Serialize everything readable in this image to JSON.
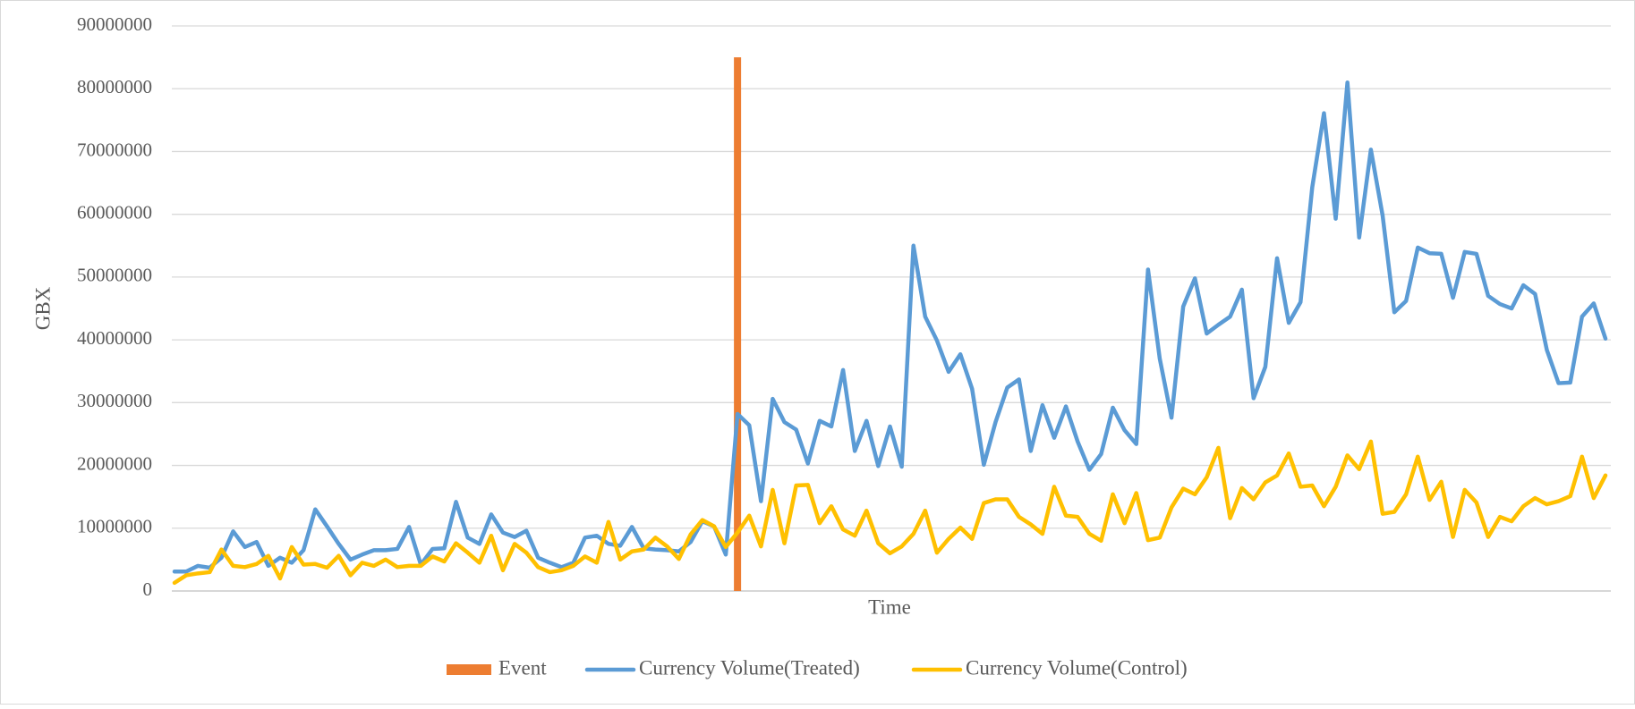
{
  "chart_data": {
    "type": "line",
    "ylabel": "GBX",
    "xlabel": "Time",
    "ylim": [
      0,
      90000000
    ],
    "yticks": [
      0,
      10000000,
      20000000,
      30000000,
      40000000,
      50000000,
      60000000,
      70000000,
      80000000,
      90000000
    ],
    "grid": true,
    "legend": "bottom",
    "categories": [
      null,
      null,
      null,
      null,
      null,
      null,
      null,
      null,
      null,
      null,
      null,
      null,
      null,
      null,
      null,
      null,
      null,
      null,
      null,
      null,
      null,
      null,
      null,
      null,
      null,
      null,
      null,
      null,
      null,
      null,
      null,
      null,
      null,
      null,
      null,
      null,
      null,
      null,
      null,
      null,
      null,
      null,
      null,
      null,
      null,
      null,
      null,
      null,
      null,
      null,
      null,
      null,
      null,
      null,
      null,
      null,
      null,
      null,
      null,
      null,
      null,
      null,
      null,
      null,
      null,
      null,
      null,
      null,
      null,
      null,
      null,
      null,
      null,
      null,
      null,
      null,
      null,
      null,
      null,
      null,
      null,
      null,
      null,
      null,
      null,
      null,
      null,
      null,
      null,
      null,
      null,
      null,
      null,
      null,
      null,
      null,
      null,
      null,
      null,
      null,
      null,
      null,
      null,
      null,
      null,
      null,
      null,
      null,
      null,
      null,
      null,
      null,
      null,
      null,
      null,
      null,
      null,
      null,
      null,
      null,
      null,
      null,
      null
    ],
    "series": [
      {
        "name": "Event",
        "type": "bar",
        "color": "#ed7d31",
        "values": [
          null,
          null,
          null,
          null,
          null,
          null,
          null,
          null,
          null,
          null,
          null,
          null,
          null,
          null,
          null,
          null,
          null,
          null,
          null,
          null,
          null,
          null,
          null,
          null,
          null,
          null,
          null,
          null,
          null,
          null,
          null,
          null,
          null,
          null,
          null,
          null,
          null,
          null,
          null,
          null,
          null,
          null,
          null,
          null,
          null,
          null,
          null,
          null,
          85000000,
          null,
          null,
          null,
          null,
          null,
          null,
          null,
          null,
          null,
          null,
          null,
          null,
          null,
          null,
          null,
          null,
          null,
          null,
          null,
          null,
          null,
          null,
          null,
          null,
          null,
          null,
          null,
          null,
          null,
          null,
          null,
          null,
          null,
          null,
          null,
          null,
          null,
          null,
          null,
          null,
          null,
          null,
          null,
          null,
          null,
          null,
          null,
          null,
          null,
          null,
          null,
          null,
          null,
          null,
          null,
          null,
          null,
          null,
          null,
          null,
          null,
          null,
          null,
          null,
          null,
          null,
          null,
          null,
          null,
          null,
          null,
          null,
          null,
          null
        ]
      },
      {
        "name": "Currency Volume(Treated)",
        "type": "line",
        "color": "#5b9bd5",
        "values": [
          3100000,
          3100000,
          4000000,
          3700000,
          5300000,
          9500000,
          7000000,
          7800000,
          4000000,
          5300000,
          4500000,
          6500000,
          13000000,
          10300000,
          7500000,
          5000000,
          5800000,
          6500000,
          6500000,
          6700000,
          10200000,
          4200000,
          6700000,
          6800000,
          14200000,
          8500000,
          7500000,
          12200000,
          9300000,
          8600000,
          9600000,
          5300000,
          4500000,
          3800000,
          4500000,
          8500000,
          8800000,
          7500000,
          7200000,
          10200000,
          6800000,
          6600000,
          6500000,
          6300000,
          7800000,
          11100000,
          10300000,
          5800000,
          28200000,
          26400000,
          14300000,
          30600000,
          26900000,
          25700000,
          20300000,
          27100000,
          26200000,
          35200000,
          22300000,
          27100000,
          19900000,
          26200000,
          19800000,
          55000000,
          43700000,
          39900000,
          34900000,
          37700000,
          32200000,
          20100000,
          26900000,
          32400000,
          33700000,
          22300000,
          29600000,
          24400000,
          29400000,
          23800000,
          19300000,
          21800000,
          29200000,
          25600000,
          23400000,
          51200000,
          37000000,
          27600000,
          45300000,
          49800000,
          41000000,
          42400000,
          43700000,
          48000000,
          30700000,
          35700000,
          53000000,
          42700000,
          46000000,
          64300000,
          76100000,
          59300000,
          81000000,
          56300000,
          70300000,
          59800000,
          44400000,
          46200000,
          54700000,
          53800000,
          53700000,
          46700000,
          54000000,
          53700000,
          47000000,
          45700000,
          45000000,
          48700000,
          47300000,
          38400000,
          33100000,
          33200000,
          43700000,
          45800000,
          40200000
        ]
      },
      {
        "name": "Currency Volume(Control)",
        "type": "line",
        "color": "#ffc000",
        "values": [
          1300000,
          2500000,
          2800000,
          3000000,
          6600000,
          4000000,
          3800000,
          4300000,
          5600000,
          2000000,
          7000000,
          4200000,
          4300000,
          3700000,
          5600000,
          2500000,
          4500000,
          4000000,
          5000000,
          3800000,
          4000000,
          4000000,
          5500000,
          4700000,
          7600000,
          6100000,
          4500000,
          8800000,
          3300000,
          7500000,
          6100000,
          3800000,
          3000000,
          3300000,
          4000000,
          5500000,
          4500000,
          11000000,
          5000000,
          6300000,
          6600000,
          8500000,
          7100000,
          5100000,
          9000000,
          11300000,
          10300000,
          7000000,
          9300000,
          12000000,
          7100000,
          16100000,
          7600000,
          16800000,
          16900000,
          10800000,
          13500000,
          9800000,
          8800000,
          12800000,
          7600000,
          6000000,
          7100000,
          9100000,
          12800000,
          6100000,
          8300000,
          10100000,
          8300000,
          14000000,
          14600000,
          14600000,
          11800000,
          10600000,
          9100000,
          16600000,
          12000000,
          11800000,
          9100000,
          8000000,
          15400000,
          10800000,
          15600000,
          8100000,
          8500000,
          13300000,
          16300000,
          15400000,
          18100000,
          22800000,
          11600000,
          16400000,
          14600000,
          17300000,
          18400000,
          21900000,
          16600000,
          16800000,
          13500000,
          16600000,
          21600000,
          19400000,
          23800000,
          12300000,
          12600000,
          15400000,
          21400000,
          14500000,
          17400000,
          8600000,
          16100000,
          14100000,
          8600000,
          11800000,
          11100000,
          13500000,
          14800000,
          13800000,
          14300000,
          15100000,
          21400000,
          14800000,
          18400000
        ]
      }
    ]
  }
}
